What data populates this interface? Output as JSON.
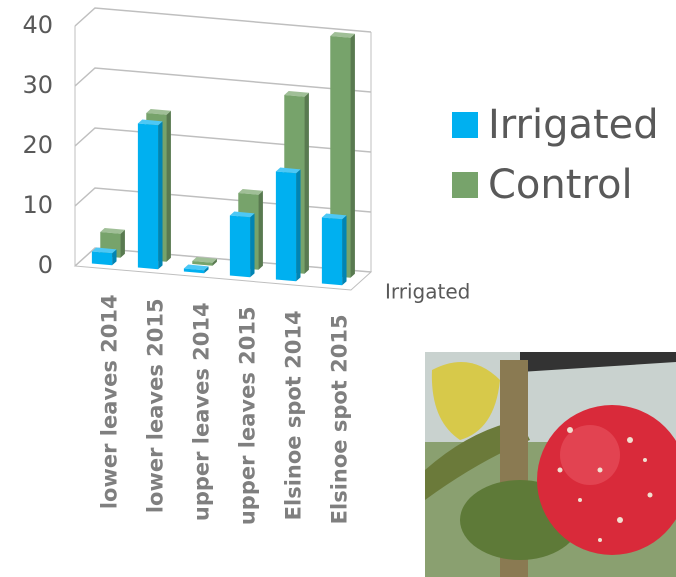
{
  "chart_data": {
    "type": "bar3d",
    "categories": [
      "lower leaves 2014",
      "lower leaves 2015",
      "upper leaves 2014",
      "upper leaves 2015",
      "Elsinoe spot 2014",
      "Elsinoe spot 2015"
    ],
    "series": [
      {
        "name": "Irrigated",
        "color": "#00b0f0",
        "values": [
          2,
          24,
          0.5,
          10,
          18,
          11
        ]
      },
      {
        "name": "Control",
        "color": "#77a36b",
        "values": [
          4,
          24.5,
          0.5,
          12.5,
          29.5,
          40
        ]
      }
    ],
    "depth_axis_label": "Irrigated",
    "ylim": [
      0,
      40
    ],
    "yticks": [
      0,
      10,
      20,
      30,
      40
    ],
    "grid": true,
    "legend": "right"
  }
}
